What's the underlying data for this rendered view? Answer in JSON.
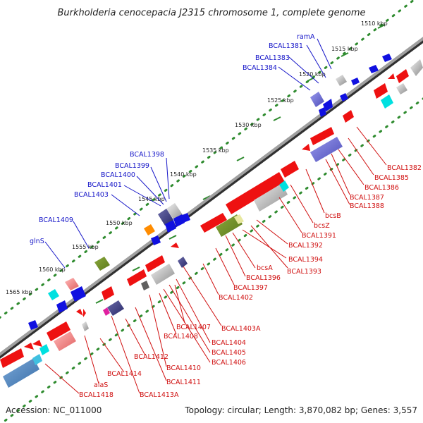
{
  "title": "Burkholderia cenocepacia J2315 chromosome 1, complete genome",
  "footer": {
    "accession": "Accession: NC_011000",
    "info": "Topology: circular; Length: 3,870,082 bp; Genes: 3,557"
  },
  "ticks": [
    "1510 kbp",
    "1515 kbp",
    "1520 kbp",
    "1525 kbp",
    "1530 kbp",
    "1535 kbp",
    "1540 kbp",
    "1545 kbp",
    "1550 kbp",
    "1555 kbp",
    "1560 kbp",
    "1565 kbp"
  ],
  "labels_top": [
    "ramA",
    "BCAL1381",
    "BCAL1383",
    "BCAL1384",
    "BCAL1398",
    "BCAL1399",
    "BCAL1400",
    "BCAL1401",
    "BCAL1403",
    "BCAL1409",
    "glnS"
  ],
  "labels_bottom": [
    "BCAL1382",
    "BCAL1385",
    "BCAL1386",
    "BCAL1387",
    "BCAL1388",
    "bcsB",
    "bcsZ",
    "BCAL1391",
    "BCAL1392",
    "BCAL1394",
    "BCAL1393",
    "bcsA",
    "BCAL1396",
    "BCAL1397",
    "BCAL1402",
    "BCAL1403A",
    "BCAL1404",
    "BCAL1405",
    "BCAL1406",
    "BCAL1407",
    "BCAL1408",
    "BCAL1410",
    "BCAL1411",
    "BCAL1412",
    "BCAL1413A",
    "BCAL1414",
    "alaS",
    "BCAL1418"
  ],
  "colors": {
    "backbone": "#808080",
    "tick": "#2e8b2e",
    "red": "#ee1111",
    "blue": "#1010e0",
    "label_top": "#1515c8",
    "label_bottom": "#d01010"
  }
}
